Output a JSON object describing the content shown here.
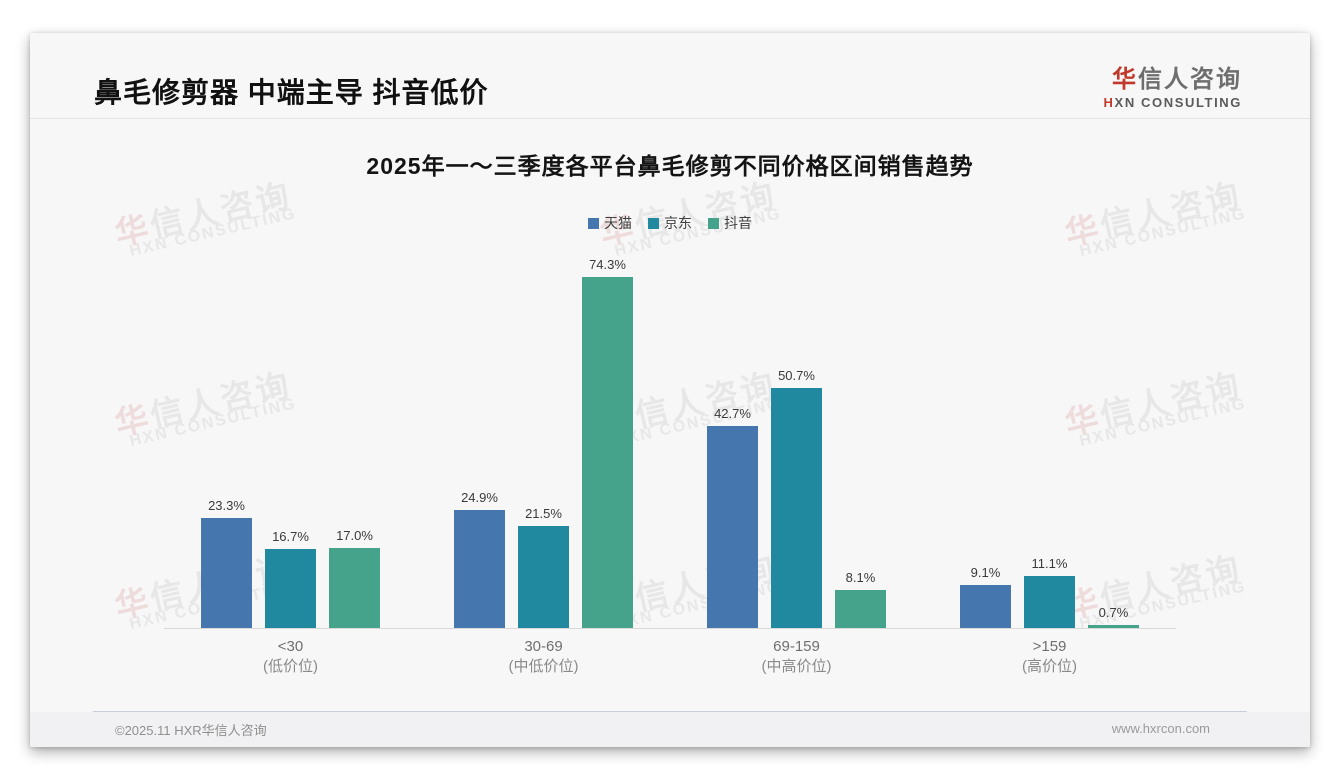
{
  "header": {
    "title": "鼻毛修剪器 中端主导 抖音低价"
  },
  "logo": {
    "cn_first": "华",
    "cn_rest": "信人咨询",
    "en_first": "H",
    "en_rest": "XN CONSULTING"
  },
  "watermark": {
    "line1_first": "华",
    "line1_rest": "信人咨询",
    "line2": "HXN CONSULTING"
  },
  "footer": {
    "copyright": "©2025.11 HXR华信人咨询",
    "website": "www.hxrcon.com"
  },
  "chart_data": {
    "type": "bar",
    "title": "2025年一～三季度各平台鼻毛修剪不同价格区间销售趋势",
    "categories": [
      {
        "range": "<30",
        "tier": "(低价位)"
      },
      {
        "range": "30-69",
        "tier": "(中低价位)"
      },
      {
        "range": "69-159",
        "tier": "(中高价位)"
      },
      {
        "range": ">159",
        "tier": "(高价位)"
      }
    ],
    "series": [
      {
        "name": "天猫",
        "color": "#4576ad",
        "values": [
          23.3,
          24.9,
          42.7,
          9.1
        ]
      },
      {
        "name": "京东",
        "color": "#2089a0",
        "values": [
          16.7,
          21.5,
          50.7,
          11.1
        ]
      },
      {
        "name": "抖音",
        "color": "#45a28b",
        "values": [
          17.0,
          74.3,
          8.1,
          0.7
        ]
      }
    ],
    "value_suffix": "%",
    "ylim": [
      0,
      80
    ],
    "grid": false,
    "legend_position": "top",
    "bar_labels": true
  }
}
